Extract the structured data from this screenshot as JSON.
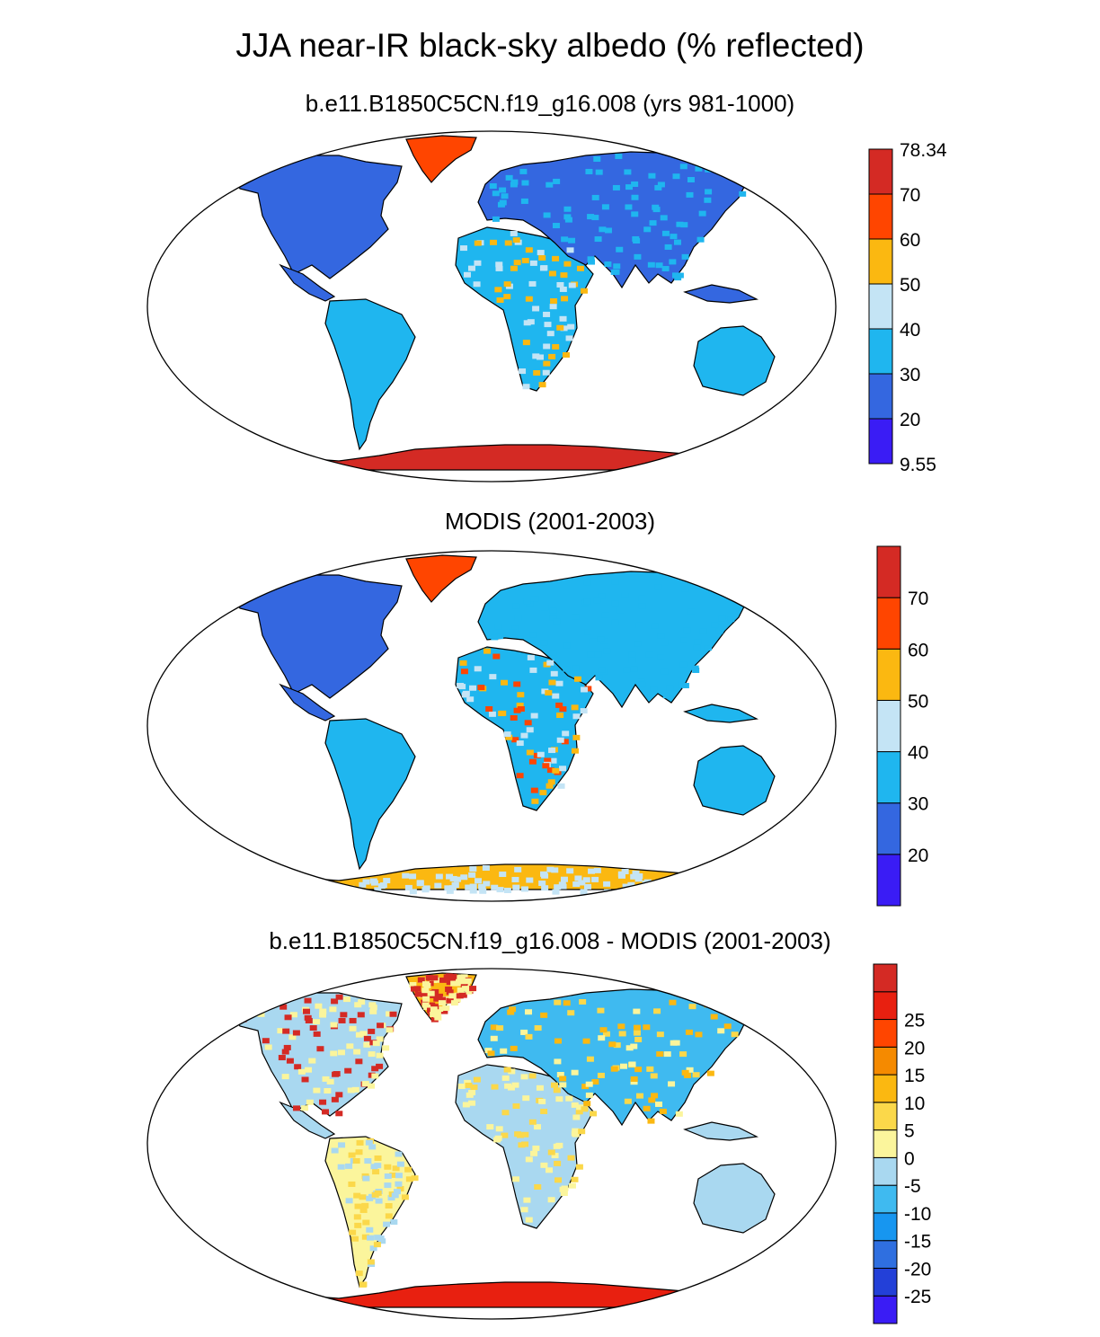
{
  "title": "JJA near-IR black-sky albedo (% reflected)",
  "panels": [
    {
      "title": "b.e11.B1850C5CN.f19_g16.008 (yrs 981-1000)",
      "colorbar": {
        "colors": [
          "#3a1cf5",
          "#3467e0",
          "#1fb6ef",
          "#c4e4f5",
          "#fbb811",
          "#ff4500",
          "#d42a24"
        ],
        "labels": [
          "9.55",
          "20",
          "30",
          "40",
          "50",
          "60",
          "70",
          "78.34"
        ]
      }
    },
    {
      "title": "MODIS (2001-2003)",
      "colorbar": {
        "colors": [
          "#3a1cf5",
          "#3467e0",
          "#1fb6ef",
          "#c4e4f5",
          "#fbb811",
          "#ff4500",
          "#d42a24"
        ],
        "labels": [
          "20",
          "30",
          "40",
          "50",
          "60",
          "70"
        ]
      }
    },
    {
      "title": "b.e11.B1850C5CN.f19_g16.008 - MODIS (2001-2003)",
      "colorbar": {
        "colors": [
          "#3a1cf5",
          "#2340d8",
          "#2f6fe0",
          "#1796f0",
          "#3fbaf0",
          "#a9d8f0",
          "#fbf59c",
          "#fbd84a",
          "#fbb811",
          "#f58a00",
          "#ff4500",
          "#e82010",
          "#d42a24"
        ],
        "labels": [
          "-25",
          "-20",
          "-15",
          "-10",
          "-5",
          "0",
          "5",
          "10",
          "15",
          "20",
          "25"
        ]
      }
    }
  ]
}
